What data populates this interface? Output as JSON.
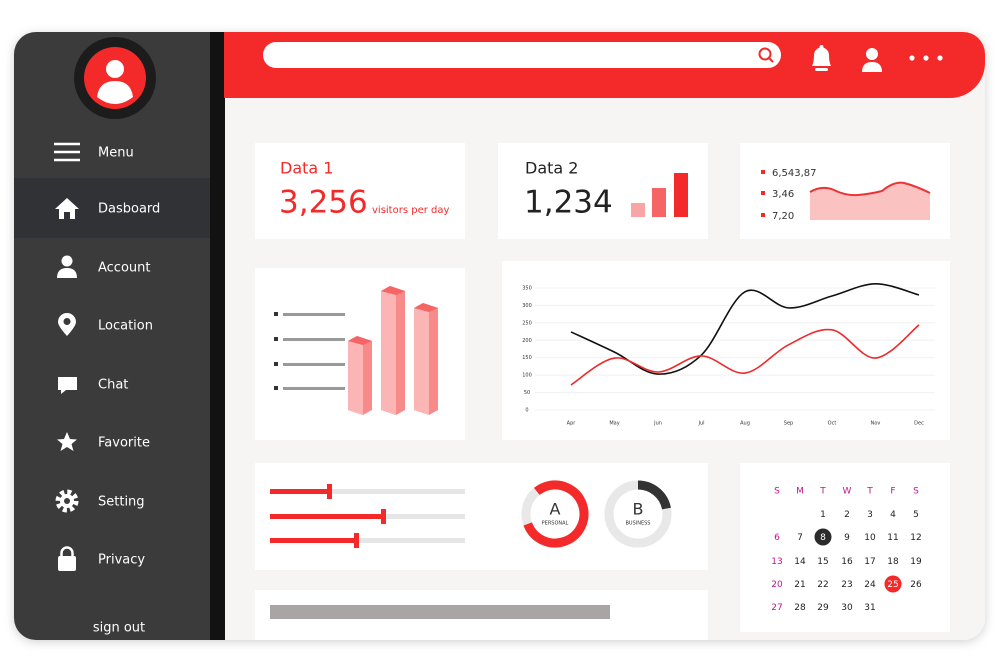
{
  "sidebar": {
    "items": [
      "Menu",
      "Dasboard",
      "Account",
      "Location",
      "Chat",
      "Favorite",
      "Setting",
      "Privacy"
    ],
    "sign_out": "sign out"
  },
  "card1": {
    "title": "Data 1",
    "value": "3,256",
    "note": "visitors per day"
  },
  "card2": {
    "title": "Data 2",
    "value": "1,234"
  },
  "card3": {
    "items": [
      "6,543,87",
      "3,46",
      "7,20"
    ]
  },
  "donuts": [
    {
      "letter": "A",
      "label": "PERSONAL"
    },
    {
      "letter": "B",
      "label": "BUSINESS"
    }
  ],
  "chart_data": {
    "type": "line",
    "categories": [
      "Apr",
      "May",
      "Jun",
      "Jul",
      "Aug",
      "Sep",
      "Oct",
      "Nov",
      "Dec"
    ],
    "series": [
      {
        "color": "#111111",
        "values": [
          224,
          166,
          103,
          158,
          339,
          293,
          327,
          362,
          330
        ]
      },
      {
        "color": "#ee2a2a",
        "values": [
          72,
          149,
          109,
          155,
          106,
          187,
          230,
          149,
          244
        ]
      }
    ],
    "ylim": [
      0,
      350
    ],
    "yticks": [
      0,
      50,
      100,
      150,
      200,
      250,
      300,
      350
    ],
    "grid": true
  },
  "calendar": {
    "weekdays": [
      "S",
      "M",
      "T",
      "W",
      "T",
      "F",
      "S"
    ],
    "weeks": [
      [
        null,
        null,
        1,
        2,
        3,
        4,
        5
      ],
      [
        6,
        7,
        8,
        9,
        10,
        11,
        12
      ],
      [
        13,
        14,
        15,
        16,
        17,
        18,
        19
      ],
      [
        20,
        21,
        22,
        23,
        24,
        25,
        26
      ],
      [
        27,
        28,
        29,
        30,
        31,
        null,
        null
      ]
    ]
  }
}
